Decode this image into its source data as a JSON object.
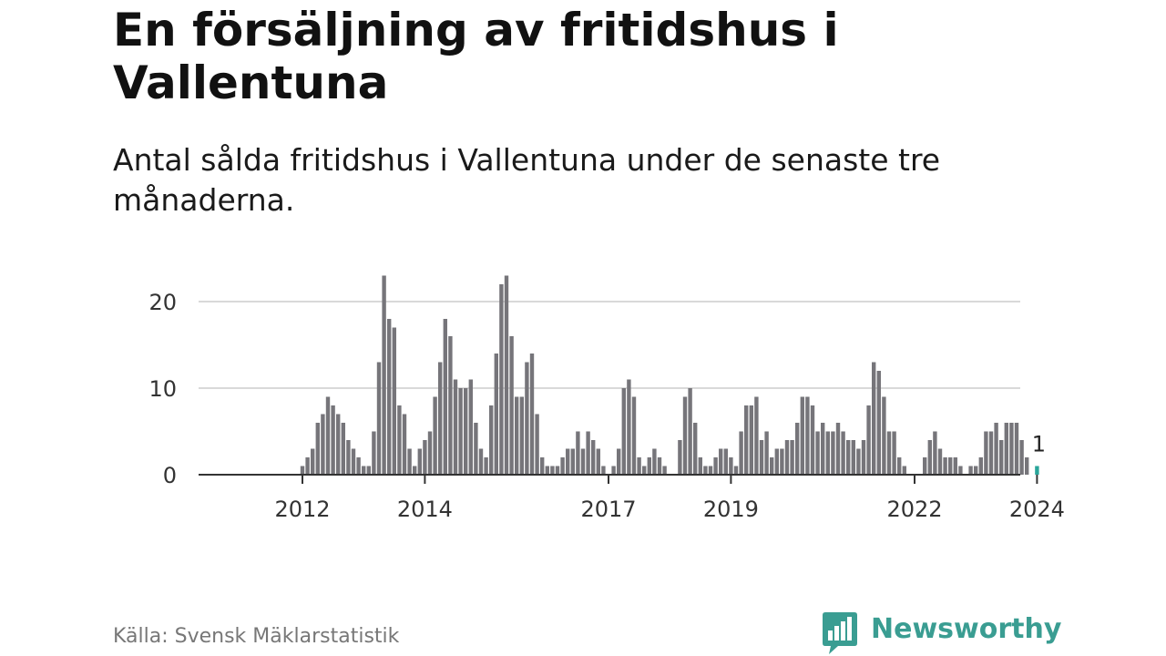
{
  "header": {
    "title": "En försäljning av fritidshus i Vallentuna",
    "subtitle": "Antal sålda fritidshus i Vallentuna under de senaste tre månaderna."
  },
  "footer": {
    "source": "Källa: Svensk Mäklarstatistik",
    "brand": "Newsworthy",
    "brand_icon": "bar-chart-speech-bubble-icon",
    "brand_color": "#3a9d92"
  },
  "colors": {
    "bar": "#76757a",
    "highlight": "#29a59a",
    "grid": "#d9d9d9",
    "axis": "#333333"
  },
  "chart_data": {
    "type": "bar",
    "start": "2011-01",
    "ylim": [
      0,
      23
    ],
    "yticks": [
      0,
      10,
      20
    ],
    "xticks": [
      {
        "label": "2012",
        "index": 12
      },
      {
        "label": "2014",
        "index": 36
      },
      {
        "label": "2017",
        "index": 72
      },
      {
        "label": "2019",
        "index": 96
      },
      {
        "label": "2022",
        "index": 132
      },
      {
        "label": "2024",
        "index": 156
      }
    ],
    "values": [
      0,
      0,
      0,
      0,
      0,
      0,
      0,
      0,
      0,
      0,
      0,
      0,
      1,
      2,
      3,
      6,
      7,
      9,
      8,
      7,
      6,
      4,
      3,
      2,
      1,
      1,
      5,
      13,
      23,
      18,
      17,
      8,
      7,
      3,
      1,
      3,
      4,
      5,
      9,
      13,
      18,
      16,
      11,
      10,
      10,
      11,
      6,
      3,
      2,
      8,
      14,
      22,
      23,
      16,
      9,
      9,
      13,
      14,
      7,
      2,
      1,
      1,
      1,
      2,
      3,
      3,
      5,
      3,
      5,
      4,
      3,
      1,
      0,
      1,
      3,
      10,
      11,
      9,
      2,
      1,
      2,
      3,
      2,
      1,
      0,
      0,
      4,
      9,
      10,
      6,
      2,
      1,
      1,
      2,
      3,
      3,
      2,
      1,
      5,
      8,
      8,
      9,
      4,
      5,
      2,
      3,
      3,
      4,
      4,
      6,
      9,
      9,
      8,
      5,
      6,
      5,
      5,
      6,
      5,
      4,
      4,
      3,
      4,
      8,
      13,
      12,
      9,
      5,
      5,
      2,
      1,
      0,
      0,
      0,
      2,
      4,
      5,
      3,
      2,
      2,
      2,
      1,
      0,
      1,
      1,
      2,
      5,
      5,
      6,
      4,
      6,
      6,
      6,
      4,
      2,
      0,
      1
    ],
    "highlight_index": 156,
    "highlight_label": "1"
  }
}
